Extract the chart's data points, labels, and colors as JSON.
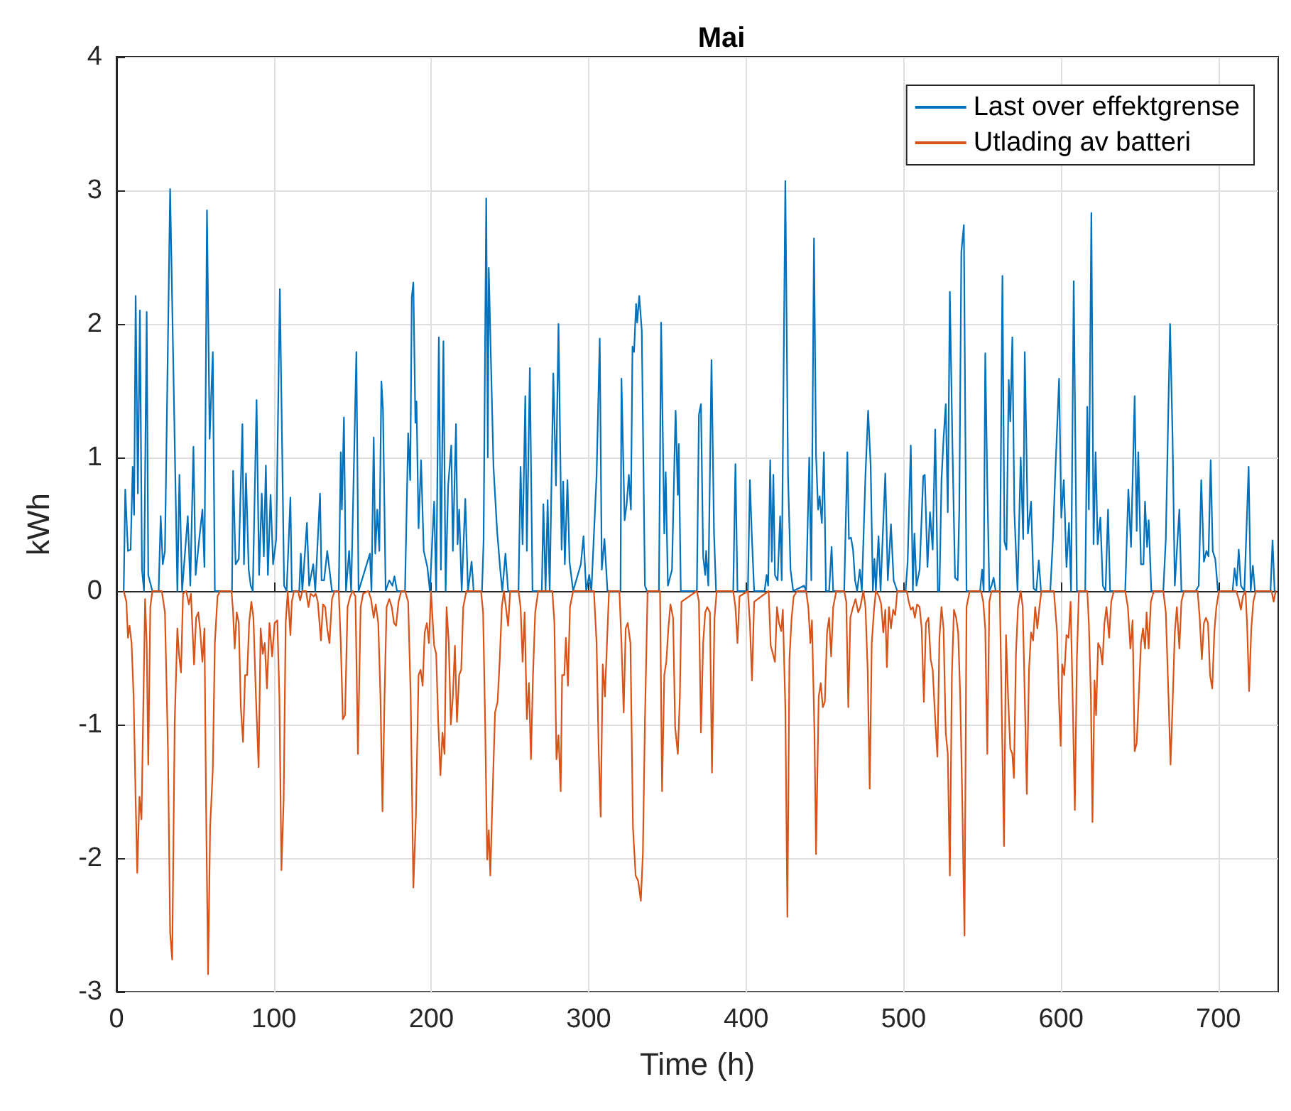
{
  "chart_data": {
    "type": "line",
    "title": "Mai",
    "xlabel": "Time (h)",
    "ylabel": "kWh",
    "xlim": [
      0,
      738
    ],
    "xticks": [
      0,
      100,
      200,
      300,
      400,
      500,
      600,
      700
    ],
    "ylim": [
      -3,
      4
    ],
    "yticks": [
      -3,
      -2,
      -1,
      0,
      1,
      2,
      3,
      4
    ],
    "grid": true,
    "legend": "top right",
    "marker": "none",
    "line_style": "solid",
    "series": [
      {
        "name": "Last over effektgrense",
        "color": "#0072bd",
        "x": [
          4.6,
          5.6,
          7.3,
          9,
          10.3,
          11.2,
          12.2,
          13.6,
          14.9,
          16.2,
          17.5,
          19.2,
          20.2,
          21.5,
          22.8,
          26.8,
          28.1,
          29.4,
          30.8,
          34.1,
          38.7,
          40,
          41.7,
          45.3,
          46.9,
          48.9,
          50.3,
          52.6,
          54.6,
          55.9,
          57.5,
          59.2,
          61.2,
          62.5,
          73.4,
          74.1,
          75.7,
          77.7,
          80,
          81,
          82.3,
          84,
          85.3,
          86.6,
          89,
          90.6,
          92.3,
          93.6,
          94.9,
          96.2,
          97.9,
          99.5,
          101.5,
          103.8,
          106.5,
          108.1,
          110.5,
          111.4,
          116.1,
          117.1,
          118.1,
          121,
          122.4,
          125,
          126.3,
          129.3,
          130.3,
          131.9,
          133.9,
          135.3,
          136.9,
          141.2,
          142.5,
          143.2,
          144.5,
          145.8,
          147.8,
          149.1,
          152.4,
          153.8,
          161,
          162,
          163.4,
          164.4,
          165.7,
          167,
          168.3,
          169.3,
          171,
          173.3,
          175.3,
          176.6,
          178.2,
          183.3,
          185.3,
          186.6,
          187.6,
          188.6,
          189.9,
          190.6,
          191.9,
          193.5,
          195.2,
          197.5,
          199.1,
          201.8,
          203.1,
          204.8,
          206.1,
          207.7,
          209.1,
          210.7,
          212.7,
          213.7,
          215.7,
          216.7,
          217.7,
          219.3,
          221.6,
          223.3,
          225.6,
          226.9,
          232.2,
          233.2,
          234.9,
          235.9,
          236.5,
          238.2,
          239.5,
          241.8,
          243.8,
          245.1,
          247.1,
          248.8,
          255.4,
          256.7,
          258,
          259.7,
          260.7,
          262.6,
          264.3,
          270.2,
          271.2,
          272.6,
          273.9,
          275.2,
          277.5,
          279.2,
          280.8,
          282.8,
          283.8,
          284.8,
          286.5,
          287.8,
          290.1,
          295,
          296.7,
          298.4,
          300.3,
          301.7,
          305,
          307,
          308.3,
          310,
          311.9,
          320.2,
          320.8,
          322.8,
          324.1,
          325.5,
          326.8,
          327.8,
          328.8,
          330.1,
          330.8,
          332.1,
          333.7,
          335.7,
          337,
          344.6,
          346,
          348,
          348.9,
          350.3,
          352.9,
          354.6,
          355.2,
          356.6,
          357.2,
          358.5,
          368.7,
          370,
          371.3,
          372.7,
          374,
          374.6,
          376,
          378,
          379.6,
          380.9,
          391.8,
          393.2,
          394.5,
          401.1,
          402.4,
          403.7,
          405.1,
          411.7,
          413,
          414,
          415.3,
          416.3,
          417.3,
          418.3,
          420,
          421.6,
          422.6,
          424.9,
          426.6,
          428.2,
          429.9,
          436.8,
          438.1,
          440.1,
          441.4,
          443.1,
          444.4,
          445.7,
          446.7,
          448.1,
          449.4,
          450.7,
          452.7,
          454.3,
          455.3,
          462.3,
          464.3,
          465.3,
          466.6,
          467.9,
          469.2,
          470.5,
          472.2,
          473.5,
          475.8,
          477.5,
          479.1,
          480.5,
          481.5,
          482.4,
          484.1,
          485.4,
          486.7,
          488.4,
          490,
          492,
          493.7,
          496,
          501.3,
          502.6,
          504.6,
          505.9,
          506.9,
          508.2,
          510.2,
          512.5,
          513.5,
          515.2,
          516.8,
          518.5,
          520.1,
          521.8,
          522.8,
          524.1,
          525.4,
          526.8,
          528.1,
          529.4,
          531.1,
          532.7,
          534.4,
          535.4,
          536.7,
          538.3,
          540,
          548.6,
          549.9,
          550.9,
          551.9,
          553.2,
          554.5,
          555.9,
          557.2,
          558.5,
          561.1,
          562.8,
          564.1,
          565.4,
          566.8,
          567.8,
          569.1,
          570.4,
          572.4,
          574.4,
          576,
          577,
          579,
          581,
          582.6,
          584.3,
          585.9,
          587.3,
          593.2,
          594.9,
          596.2,
          598.8,
          600.2,
          601.8,
          603.5,
          605.1,
          606.4,
          608.1,
          610.1,
          615.4,
          616.7,
          617.7,
          619.3,
          620.7,
          622,
          623.3,
          625,
          626.6,
          628.3,
          629.9,
          631.2,
          640.8,
          642.8,
          644.5,
          646.8,
          648.1,
          649.1,
          650.8,
          652.4,
          653.4,
          654.7,
          655.7,
          657.4,
          665,
          666.6,
          668.3,
          669.3,
          670.9,
          672.3,
          675.2,
          676.5,
          685.5,
          687.5,
          689.1,
          690.8,
          692.4,
          693.7,
          695.1,
          696.4,
          698,
          699.7,
          709,
          710.3,
          711.6,
          712.9,
          714.3,
          716.5,
          719.2,
          720.5,
          721.9,
          723.2,
          733.1,
          734.4,
          735.7
        ],
        "values": [
          0,
          0.76,
          0.3,
          0.31,
          0.93,
          0.57,
          2.21,
          0.73,
          2.1,
          0.16,
          0,
          2.09,
          0.12,
          0.06,
          0,
          0,
          0.56,
          0.2,
          0.3,
          3.01,
          0,
          0.87,
          0,
          0.56,
          0.04,
          1.08,
          0.12,
          0.39,
          0.61,
          0.18,
          2.85,
          1.14,
          1.79,
          0,
          0,
          0.9,
          0.2,
          0.24,
          1.25,
          0.2,
          0.88,
          0.16,
          0.04,
          0,
          1.43,
          0.12,
          0.73,
          0.26,
          0.94,
          0.12,
          0.72,
          0.2,
          0.39,
          2.26,
          0.04,
          0,
          0.7,
          0,
          0,
          0.28,
          0,
          0.51,
          0.04,
          0.2,
          0,
          0.73,
          0.08,
          0.08,
          0.3,
          0.16,
          0,
          0,
          1.04,
          0.61,
          1.3,
          0,
          0.3,
          0,
          1.79,
          0,
          0.28,
          0,
          1.15,
          0.28,
          0.61,
          0.3,
          1.57,
          1.36,
          0,
          0.08,
          0.04,
          0.11,
          0,
          0,
          1.18,
          0.83,
          2.2,
          2.31,
          1.26,
          1.42,
          0.47,
          0.98,
          0.3,
          0.18,
          0,
          0.67,
          0,
          1.9,
          0.16,
          1.87,
          0,
          0.79,
          1.09,
          0.3,
          1.25,
          0.35,
          0.61,
          0,
          0.69,
          0,
          0.22,
          0,
          0,
          0.37,
          2.94,
          1.0,
          2.42,
          1.57,
          0.93,
          0.45,
          0.16,
          0,
          0.28,
          0,
          0,
          0.93,
          0.35,
          1.46,
          0.3,
          1.67,
          0,
          0,
          0.65,
          0,
          0.68,
          0,
          1.63,
          0.79,
          2.0,
          0.31,
          0.82,
          0.2,
          0.83,
          0.22,
          0,
          0.2,
          0.41,
          0,
          0.12,
          0,
          0.87,
          1.89,
          0.16,
          0.39,
          0,
          0,
          1.59,
          0.53,
          0.65,
          0.87,
          0.61,
          1.83,
          1.79,
          2.15,
          2.01,
          2.21,
          1.95,
          0.04,
          0,
          0,
          2.01,
          0.43,
          0.89,
          0.04,
          0.16,
          1.06,
          1.35,
          0.72,
          1.1,
          0,
          0,
          1.32,
          1.4,
          0.26,
          0.12,
          0.3,
          0.04,
          1.73,
          0.43,
          0,
          0,
          0.95,
          0,
          0,
          0.83,
          0.39,
          0,
          0,
          0.12,
          0.04,
          0.98,
          0.22,
          0.87,
          0.12,
          0.08,
          0.56,
          0.08,
          3.07,
          0.87,
          0.16,
          0,
          0.04,
          0,
          1.0,
          0.08,
          2.64,
          1.02,
          0.61,
          0.71,
          0.51,
          1.04,
          0,
          0,
          0.33,
          0,
          0,
          1.04,
          0.39,
          0.4,
          0.31,
          0.08,
          0,
          0.16,
          0,
          0.87,
          1.35,
          0.94,
          0,
          0.24,
          0,
          0.41,
          0,
          0.39,
          0.88,
          0.08,
          0.5,
          0.08,
          0,
          0,
          0.22,
          1.09,
          0,
          0.43,
          0.04,
          0.16,
          0.86,
          0.87,
          0.18,
          0.59,
          0.31,
          1.21,
          0,
          0,
          0.83,
          1.14,
          1.4,
          0.59,
          2.24,
          1.06,
          0.1,
          0.08,
          0.61,
          2.54,
          2.74,
          0,
          0,
          0.16,
          0,
          1.78,
          0.79,
          0,
          0.04,
          0.1,
          0,
          0,
          2.36,
          0.37,
          0.31,
          1.58,
          1.27,
          1.9,
          0.59,
          0,
          1.0,
          0.39,
          1.79,
          0.43,
          0.67,
          0.02,
          0,
          0.23,
          0,
          0,
          0.39,
          0.83,
          1.59,
          0.55,
          0.83,
          0.18,
          0.51,
          0,
          2.32,
          0,
          0,
          1.38,
          0.61,
          2.83,
          0.35,
          1.04,
          0.35,
          0.55,
          0.04,
          0,
          0.61,
          0,
          0,
          0.76,
          0.33,
          1.46,
          0.45,
          1.04,
          0.2,
          0.2,
          0.67,
          0.33,
          0.53,
          0,
          0,
          0.39,
          1.42,
          2.0,
          1.14,
          0.04,
          0.61,
          0,
          0,
          0.04,
          0.83,
          0.22,
          0.3,
          0.26,
          0.98,
          0.3,
          0.24,
          0,
          0,
          0.17,
          0.04,
          0.31,
          0.04,
          0,
          0.93,
          0,
          0.19,
          0,
          0,
          0.38,
          0
        ]
      },
      {
        "name": "Utlading av batteri",
        "color": "#d95319",
        "x": [
          4.6,
          6.3,
          7.3,
          8.3,
          9.6,
          10.9,
          12.2,
          13.2,
          14.6,
          15.9,
          16.9,
          18.2,
          19.2,
          20.2,
          21.5,
          22.8,
          28.8,
          30.8,
          32.7,
          34.1,
          35.4,
          37,
          38.7,
          39.7,
          41,
          42.3,
          44.3,
          46,
          47.3,
          49.3,
          50.6,
          52,
          53.2,
          54.6,
          55.9,
          56.9,
          58.2,
          59.5,
          61.2,
          62.5,
          64.2,
          65.8,
          73.1,
          74.1,
          75.1,
          76.4,
          77.7,
          79,
          80.4,
          81.7,
          83,
          84.3,
          85.7,
          87,
          88.6,
          90.3,
          91.6,
          92.9,
          94.2,
          95.6,
          97.2,
          98.9,
          100.5,
          102.2,
          103.5,
          104.8,
          106.2,
          107.5,
          108.8,
          110.5,
          111.4,
          112.8,
          115.4,
          116.7,
          118.1,
          120.4,
          122,
          123.3,
          125.3,
          126.6,
          127.9,
          129.9,
          131.2,
          132.6,
          133.9,
          135.3,
          136.9,
          138.6,
          141.2,
          142.5,
          143.8,
          145.2,
          146.8,
          148.5,
          150.1,
          151.8,
          153.4,
          155.1,
          156.7,
          160,
          161.7,
          163.4,
          164.7,
          166.3,
          167.7,
          169,
          170.3,
          171.6,
          173.3,
          174.9,
          176.3,
          177.6,
          179.2,
          180.9,
          183.3,
          185.3,
          186.9,
          188.6,
          190.2,
          191.9,
          193.2,
          194.5,
          195.8,
          197.2,
          198.5,
          199.8,
          201.8,
          203.1,
          204.4,
          205.8,
          207.1,
          208.4,
          209.7,
          211.1,
          212.4,
          213.7,
          215,
          216.3,
          217.7,
          219,
          220.3,
          222.3,
          231.6,
          232.9,
          234.2,
          235.5,
          236.5,
          237.5,
          238.8,
          240.5,
          242.1,
          243.5,
          244.8,
          246.1,
          247.4,
          248.8,
          250.1,
          255.4,
          256.7,
          258,
          259.3,
          260.7,
          262,
          263.3,
          264.6,
          266,
          267.9,
          276.9,
          278.2,
          279.5,
          280.8,
          282.2,
          283.1,
          284.5,
          285.5,
          286.8,
          288.1,
          290.1,
          303.3,
          305,
          306.3,
          307.6,
          308.9,
          310.3,
          311.6,
          312.9,
          319.5,
          320.8,
          322.2,
          323.5,
          324.8,
          326.5,
          328.1,
          329.8,
          331.4,
          333.1,
          334.4,
          335.7,
          337.4,
          345.3,
          346.6,
          348,
          349.3,
          350.6,
          351.9,
          353.6,
          354.9,
          356.6,
          357.9,
          358.9,
          368.7,
          370,
          371.3,
          372.7,
          374,
          375.3,
          377,
          378.3,
          379.9,
          381.3,
          391.8,
          393.2,
          394.5,
          395.8,
          401.1,
          402.4,
          403.7,
          405.1,
          414.3,
          415.6,
          417,
          418.3,
          419.6,
          420.9,
          422.3,
          423.3,
          424.9,
          426.2,
          427.5,
          428.9,
          430.2,
          432.5,
          438.1,
          439.5,
          440.8,
          441.8,
          443.4,
          444.4,
          446.1,
          447.4,
          448.7,
          450,
          451.4,
          452.7,
          454,
          455.3,
          457.3,
          462.3,
          463.6,
          464.9,
          466.2,
          467.9,
          469.5,
          471.2,
          472.5,
          474.5,
          475.8,
          477.2,
          478.5,
          479.8,
          481.1,
          482.4,
          484.4,
          485.8,
          487.1,
          488.4,
          489.4,
          490.7,
          492,
          493.4,
          494.7,
          496,
          502,
          503.3,
          504.6,
          505.9,
          507.2,
          508.6,
          510.2,
          511.5,
          512.9,
          514.2,
          515.8,
          517.2,
          518.5,
          520.1,
          521.5,
          522.8,
          524.1,
          525.4,
          526.8,
          528.1,
          529.4,
          530.7,
          532,
          533.4,
          534.7,
          536,
          537.3,
          538.7,
          540,
          542,
          549.2,
          550.6,
          551.9,
          553.2,
          554.5,
          555.9,
          561.1,
          562.5,
          563.8,
          565.1,
          566.4,
          567.8,
          569.1,
          570.1,
          571.4,
          572.7,
          574.4,
          575.7,
          577,
          578.3,
          579.7,
          581,
          582.3,
          583.6,
          585,
          586.3,
          587.6,
          595.5,
          597.5,
          598.8,
          599.8,
          600.8,
          602.1,
          603.5,
          604.8,
          606.1,
          607.4,
          608.8,
          610.1,
          611.4,
          616.7,
          617.7,
          619,
          620,
          621.3,
          622.3,
          623.6,
          625,
          626.3,
          627.6,
          628.9,
          630.6,
          631.9,
          633.6,
          640.8,
          642.5,
          644.1,
          645.5,
          646.8,
          648.1,
          649.4,
          650.8,
          652.1,
          653.4,
          654.4,
          655.7,
          657.1,
          659,
          665,
          666.6,
          668.3,
          669.6,
          670.9,
          672.3,
          673.6,
          675.2,
          676.5,
          678.2,
          686.8,
          688.1,
          689.5,
          690.8,
          692.1,
          693.4,
          694.7,
          696.1,
          697.4,
          698.7,
          700.4,
          711.3,
          712.9,
          714.3,
          715.6,
          717.2,
          718.2,
          719.5,
          720.9,
          722.2,
          723.8,
          733.8,
          735.1,
          736.4
        ],
        "values": [
          0,
          -0.08,
          -0.35,
          -0.26,
          -0.39,
          -0.79,
          -1.57,
          -2.11,
          -1.54,
          -1.71,
          -0.98,
          -0.06,
          -0.39,
          -1.3,
          -0.12,
          0,
          0,
          -0.16,
          -1.18,
          -2.56,
          -2.76,
          -0.98,
          -0.28,
          -0.47,
          -0.61,
          -0.02,
          0,
          -0.1,
          -0.02,
          -0.55,
          -0.2,
          -0.16,
          -0.3,
          -0.53,
          -0.28,
          -1.57,
          -2.87,
          -1.77,
          -1.34,
          -0.39,
          -0.04,
          0,
          0,
          -0.16,
          -0.43,
          -0.16,
          -0.24,
          -0.87,
          -1.13,
          -0.63,
          -0.63,
          -0.24,
          -0.08,
          -0.2,
          -0.79,
          -1.32,
          -0.28,
          -0.47,
          -0.39,
          -0.73,
          -0.24,
          -0.49,
          -0.24,
          -0.22,
          -0.79,
          -2.09,
          -1.57,
          -0.24,
          0,
          -0.33,
          -0.08,
          0,
          0,
          -0.07,
          0,
          0,
          -0.12,
          -0.02,
          -0.04,
          -0.02,
          -0.08,
          -0.37,
          -0.1,
          -0.12,
          -0.28,
          -0.39,
          -0.06,
          0,
          0,
          -0.39,
          -0.96,
          -0.93,
          -0.12,
          -0.04,
          0,
          -0.04,
          -1.22,
          -0.12,
          -0.02,
          0,
          -0.06,
          -0.2,
          -0.1,
          -0.24,
          -0.79,
          -1.65,
          -0.79,
          -0.12,
          -0.06,
          -0.12,
          -0.24,
          -0.26,
          -0.08,
          0,
          0,
          -0.08,
          -0.79,
          -2.22,
          -1.69,
          -0.63,
          -0.59,
          -0.71,
          -0.31,
          -0.24,
          -0.39,
          0,
          -0.41,
          -0.47,
          -0.98,
          -1.38,
          -1.06,
          -1.22,
          -0.12,
          -0.39,
          -1.0,
          -0.79,
          -0.41,
          -0.98,
          -0.63,
          -0.59,
          -0.12,
          0,
          0,
          -0.16,
          -0.98,
          -2.01,
          -1.79,
          -2.13,
          -1.57,
          -0.91,
          -0.83,
          -0.51,
          -0.12,
          0,
          -0.12,
          -0.26,
          0,
          0,
          -0.12,
          -0.53,
          -0.16,
          -0.96,
          -0.69,
          -1.26,
          -0.63,
          -0.16,
          0,
          0,
          -0.24,
          -1.26,
          -1.08,
          -1.5,
          -0.63,
          -0.63,
          -0.35,
          -0.71,
          -0.12,
          0,
          0,
          -0.39,
          -1.18,
          -1.69,
          -0.55,
          -0.79,
          -0.39,
          0,
          0,
          -0.39,
          -0.91,
          -0.28,
          -0.24,
          -0.39,
          -1.77,
          -2.13,
          -2.17,
          -2.32,
          -1.97,
          -0.98,
          0,
          0,
          -1.5,
          -0.63,
          -0.53,
          -0.28,
          -0.1,
          -0.2,
          -1.02,
          -1.22,
          -0.79,
          -0.08,
          0,
          -0.08,
          -1.06,
          -0.39,
          -0.16,
          -0.12,
          -0.16,
          -1.36,
          -0.2,
          0,
          0,
          -0.12,
          -0.39,
          -0.04,
          0,
          -0.24,
          -0.67,
          -0.08,
          0,
          -0.41,
          -0.47,
          -0.53,
          -0.12,
          -0.24,
          -0.3,
          -0.14,
          -0.87,
          -2.44,
          -0.51,
          -0.2,
          -0.04,
          0,
          0,
          -0.12,
          -0.39,
          -0.22,
          -1.06,
          -1.97,
          -0.79,
          -0.69,
          -0.87,
          -0.83,
          -0.31,
          -0.2,
          -0.49,
          -0.12,
          0,
          0,
          -0.08,
          -0.87,
          -0.2,
          -0.12,
          -0.06,
          -0.16,
          -0.12,
          0,
          -0.12,
          -0.59,
          -1.48,
          -0.39,
          -0.16,
          0,
          -0.04,
          -0.1,
          -0.31,
          -0.14,
          -0.57,
          -0.12,
          -0.28,
          -0.14,
          -0.18,
          0,
          0,
          -0.08,
          -0.14,
          -0.12,
          -0.2,
          -0.1,
          -0.12,
          -0.28,
          -0.83,
          -0.24,
          -0.2,
          -0.51,
          -0.59,
          -0.96,
          -1.24,
          -0.35,
          -0.12,
          -0.28,
          -1.06,
          -1.22,
          -2.13,
          -0.63,
          -0.14,
          -0.2,
          -0.31,
          -0.79,
          -1.57,
          -2.58,
          -0.12,
          0,
          0,
          -0.08,
          -0.28,
          -1.22,
          -0.08,
          0,
          0,
          -0.98,
          -1.91,
          -0.33,
          -0.79,
          -1.18,
          -1.22,
          -1.4,
          -0.47,
          -0.12,
          0,
          -0.12,
          -0.79,
          -1.52,
          -0.59,
          -0.31,
          -0.37,
          -0.12,
          -0.28,
          -0.12,
          0,
          0,
          -0.31,
          -0.83,
          -1.16,
          -0.55,
          -0.63,
          -0.33,
          -0.35,
          -0.08,
          -0.79,
          -1.64,
          -0.51,
          0,
          0,
          -0.24,
          -0.79,
          -1.73,
          -0.67,
          -0.93,
          -0.39,
          -0.43,
          -0.55,
          -0.24,
          -0.12,
          -0.35,
          -0.08,
          0,
          0,
          -0.12,
          -0.43,
          -0.22,
          -1.2,
          -1.14,
          -0.79,
          -0.39,
          -0.28,
          -0.43,
          -0.16,
          -0.43,
          -0.08,
          0,
          0,
          -0.16,
          -0.79,
          -1.3,
          -0.85,
          -0.31,
          -0.12,
          -0.43,
          -0.08,
          0,
          0,
          -0.2,
          -0.51,
          -0.24,
          -0.2,
          -0.24,
          -0.63,
          -0.73,
          -0.31,
          -0.12,
          0,
          0,
          -0.06,
          -0.14,
          -0.04,
          0,
          -0.24,
          -0.75,
          -0.28,
          -0.08,
          0,
          0,
          -0.08,
          0
        ]
      }
    ]
  }
}
